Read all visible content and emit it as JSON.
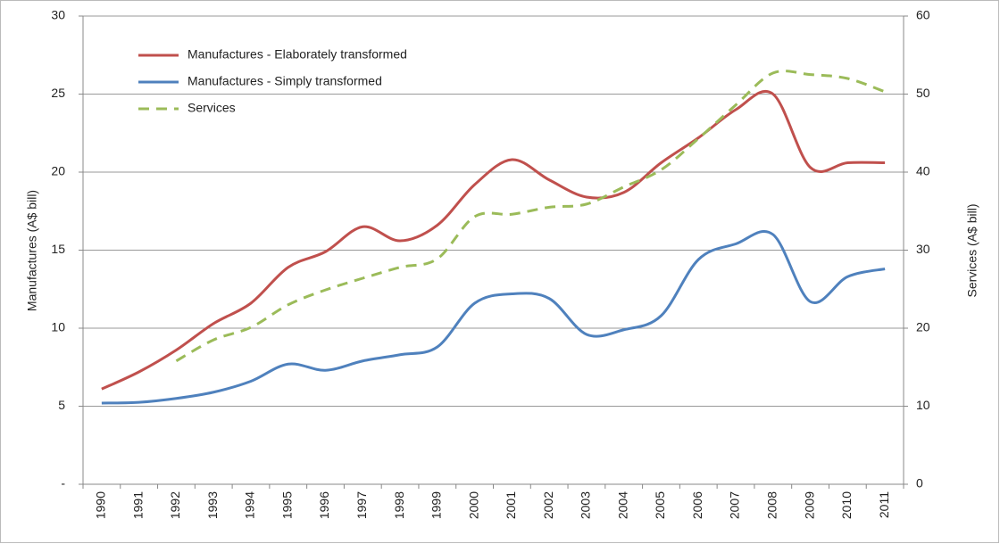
{
  "chart_data": {
    "type": "line",
    "ylabel": "Manufactures (A$ bill)",
    "y2label": "Services (A$ bill)",
    "categories": [
      "1990",
      "1991",
      "1992",
      "1993",
      "1994",
      "1995",
      "1996",
      "1997",
      "1998",
      "1999",
      "2000",
      "2001",
      "2002",
      "2003",
      "2004",
      "2005",
      "2006",
      "2007",
      "2008",
      "2009",
      "2010",
      "2011"
    ],
    "series": [
      {
        "name": "Manufactures - Elaborately transformed",
        "color": "#c0504d",
        "style": "solid",
        "values": [
          6.1,
          7.2,
          8.6,
          10.3,
          11.6,
          13.9,
          14.9,
          16.5,
          15.6,
          16.6,
          19.2,
          20.8,
          19.5,
          18.4,
          18.7,
          20.6,
          22.2,
          24.0,
          25.0,
          20.3,
          20.6,
          20.6
        ]
      },
      {
        "name": "Manufactures - Simply transformed",
        "color": "#4f81bd",
        "style": "solid",
        "values": [
          5.2,
          5.25,
          5.5,
          5.9,
          6.6,
          7.7,
          7.3,
          7.9,
          8.3,
          8.8,
          11.6,
          12.2,
          11.9,
          9.6,
          9.9,
          10.8,
          14.4,
          15.4,
          16.0,
          11.7,
          13.3,
          13.8
        ]
      },
      {
        "name": "Services",
        "color": "#9bbb59",
        "style": "dashed",
        "axis": "y2",
        "values": [
          null,
          null,
          15.8,
          18.5,
          20.1,
          23.0,
          24.9,
          26.4,
          27.8,
          28.9,
          34.3,
          34.6,
          35.5,
          35.9,
          38.1,
          40.3,
          44.3,
          48.6,
          52.7,
          52.5,
          52.0,
          50.3
        ]
      }
    ],
    "ylim": [
      0,
      30
    ],
    "yticks": [
      {
        "value": 0,
        "label": "-"
      },
      5,
      10,
      15,
      20,
      25,
      30
    ],
    "y2lim": [
      0,
      60
    ],
    "y2ticks": [
      0,
      10,
      20,
      30,
      40,
      50,
      60
    ],
    "grid": true,
    "smooth": true,
    "legend": "upper left"
  }
}
